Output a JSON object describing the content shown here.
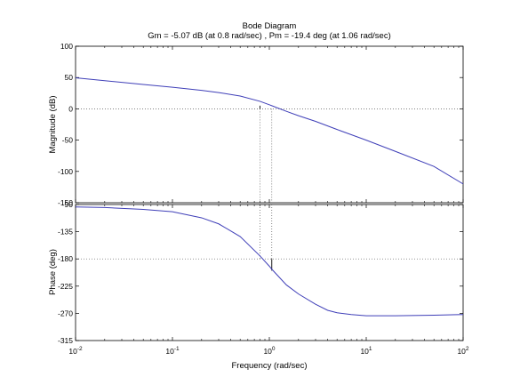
{
  "chart_data": {
    "type": "line",
    "title": "Bode Diagram",
    "subtitle": "Gm = -5.07 dB (at 0.8 rad/sec) ,  Pm = -19.4 deg (at 1.06 rad/sec)",
    "xlabel": "Frequency  (rad/sec)",
    "xscale": "log",
    "xlim": [
      0.01,
      100
    ],
    "x_ticks": [
      {
        "value": 0.01,
        "base": "10",
        "exp": "-2"
      },
      {
        "value": 0.1,
        "base": "10",
        "exp": "-1"
      },
      {
        "value": 1,
        "base": "10",
        "exp": "0"
      },
      {
        "value": 10,
        "base": "10",
        "exp": "1"
      },
      {
        "value": 100,
        "base": "10",
        "exp": "2"
      }
    ],
    "grid": false,
    "line_color": "#3f3fb8",
    "panels": [
      {
        "id": "magnitude",
        "ylabel": "Magnitude (dB)",
        "ylim": [
          -150,
          100
        ],
        "yticks": [
          100,
          50,
          0,
          -50,
          -100,
          -150
        ],
        "ytick_labels": [
          "100",
          "50",
          "0",
          "-50",
          "-100",
          "-150"
        ],
        "reference_line": 0,
        "series": [
          {
            "x": [
              0.01,
              0.02,
              0.05,
              0.1,
              0.2,
              0.3,
              0.5,
              0.8,
              1.0,
              1.06,
              1.5,
              2,
              3,
              5,
              10,
              20,
              50,
              100
            ],
            "y": [
              49.5,
              45,
              39,
              34.5,
              29.5,
              26,
              20.5,
              12,
              6.5,
              5,
              -4,
              -11,
              -20,
              -33,
              -50,
              -68,
              -92,
              -120
            ]
          }
        ]
      },
      {
        "id": "phase",
        "ylabel": "Phase (deg)",
        "ylim": [
          -315,
          -90
        ],
        "yticks": [
          -90,
          -135,
          -180,
          -225,
          -270,
          -315
        ],
        "ytick_labels": [
          "-90",
          "-135",
          "-180",
          "-225",
          "-270",
          "-315"
        ],
        "reference_line": -180,
        "series": [
          {
            "x": [
              0.01,
              0.02,
              0.05,
              0.1,
              0.2,
              0.3,
              0.5,
              0.8,
              1.0,
              1.06,
              1.5,
              2,
              3,
              4,
              5,
              7,
              10,
              20,
              50,
              100
            ],
            "y": [
              -94,
              -95,
              -98,
              -102,
              -112,
              -122,
              -143,
              -175,
              -192,
              -197,
              -223,
              -238,
              -255,
              -265,
              -269,
              -272,
              -274,
              -274,
              -273,
              -272
            ]
          }
        ]
      }
    ],
    "margin_markers": [
      {
        "type": "gain_margin",
        "frequency": 0.8,
        "value_db": -5.07,
        "marker_panel": "magnitude",
        "marker_from": 0,
        "marker_to": 5.07
      },
      {
        "type": "phase_margin",
        "frequency": 1.06,
        "value_deg": -19.4,
        "marker_panel": "phase",
        "marker_from": -180,
        "marker_to": -199.4
      }
    ]
  }
}
